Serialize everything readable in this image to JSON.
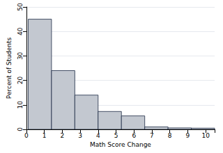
{
  "chart_data": {
    "type": "histogram",
    "x_label": "Math Score Change",
    "y_label": "Percent of Students",
    "bins": [
      0.1,
      1.4,
      2.7,
      4.0,
      5.3,
      6.6,
      7.9,
      9.2,
      10.5
    ],
    "values": [
      45,
      24,
      14,
      7.3,
      5.5,
      1.0,
      0.6,
      0.5
    ],
    "color": "#c3c8d0",
    "xlim": [
      0,
      10.5
    ],
    "xticks": [
      0,
      1,
      2,
      3,
      4,
      5,
      6,
      7,
      8,
      9,
      10
    ],
    "ylim": [
      0,
      50
    ],
    "yticks": [
      0,
      10,
      20,
      30,
      40,
      50
    ],
    "grid": true
  }
}
